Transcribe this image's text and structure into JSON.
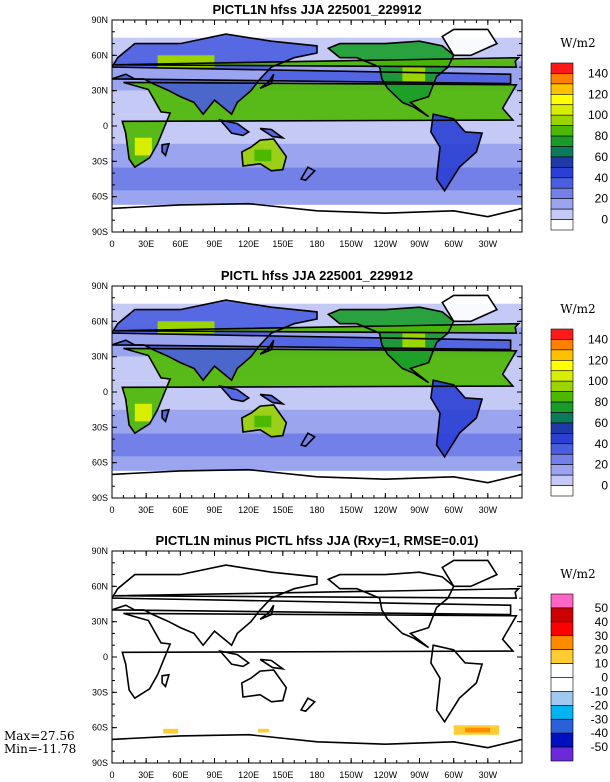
{
  "panels": [
    {
      "title": "PICTL1N hfss JJA 225001_229912",
      "unit": "W/m2",
      "colorbar": {
        "labels": [
          "140",
          "120",
          "100",
          "80",
          "60",
          "40",
          "20",
          "0"
        ],
        "colors": [
          "#ff1a1a",
          "#ff8000",
          "#ffc000",
          "#ffff00",
          "#d8ee00",
          "#9cd400",
          "#4cb800",
          "#179c2a",
          "#0a7a5a",
          "#1e3aa8",
          "#2a3fd4",
          "#4a5ee0",
          "#7280e8",
          "#9aa4ef",
          "#c4c9f5",
          "#ffffff"
        ]
      }
    },
    {
      "title": "PICTL hfss JJA 225001_229912",
      "unit": "W/m2",
      "colorbar": {
        "labels": [
          "140",
          "120",
          "100",
          "80",
          "60",
          "40",
          "20",
          "0"
        ],
        "colors": [
          "#ff1a1a",
          "#ff8000",
          "#ffc000",
          "#ffff00",
          "#d8ee00",
          "#9cd400",
          "#4cb800",
          "#179c2a",
          "#0a7a5a",
          "#1e3aa8",
          "#2a3fd4",
          "#4a5ee0",
          "#7280e8",
          "#9aa4ef",
          "#c4c9f5",
          "#ffffff"
        ]
      }
    },
    {
      "title": "PICTL1N minus PICTL hfss JJA (Rxy=1, RMSE=0.01)",
      "unit": "W/m2",
      "colorbar": {
        "labels": [
          "50",
          "40",
          "30",
          "20",
          "10",
          "0",
          "-10",
          "-20",
          "-30",
          "-40",
          "-50"
        ],
        "colors": [
          "#ff66c4",
          "#cc0000",
          "#ff0000",
          "#ff8c00",
          "#ffcc33",
          "#ffffff",
          "#ffffff",
          "#a0c8f0",
          "#00b4f0",
          "#2a60d8",
          "#0010c0",
          "#6a2ad8"
        ]
      }
    }
  ],
  "axes": {
    "lat_labels": [
      "90N",
      "60N",
      "30N",
      "0",
      "30S",
      "60S",
      "90S"
    ],
    "lon_labels": [
      "0",
      "30E",
      "60E",
      "90E",
      "120E",
      "150E",
      "180",
      "150W",
      "120W",
      "90W",
      "60W",
      "30W"
    ]
  },
  "stats": {
    "max": "Max=27.56",
    "min": "Min=-11.78"
  },
  "colors": {
    "ocean_band_low": "#9aa4ef",
    "land_green": "#4cb800",
    "land_blue": "#4a5ee0",
    "diff_positive": "#ffcc33"
  }
}
